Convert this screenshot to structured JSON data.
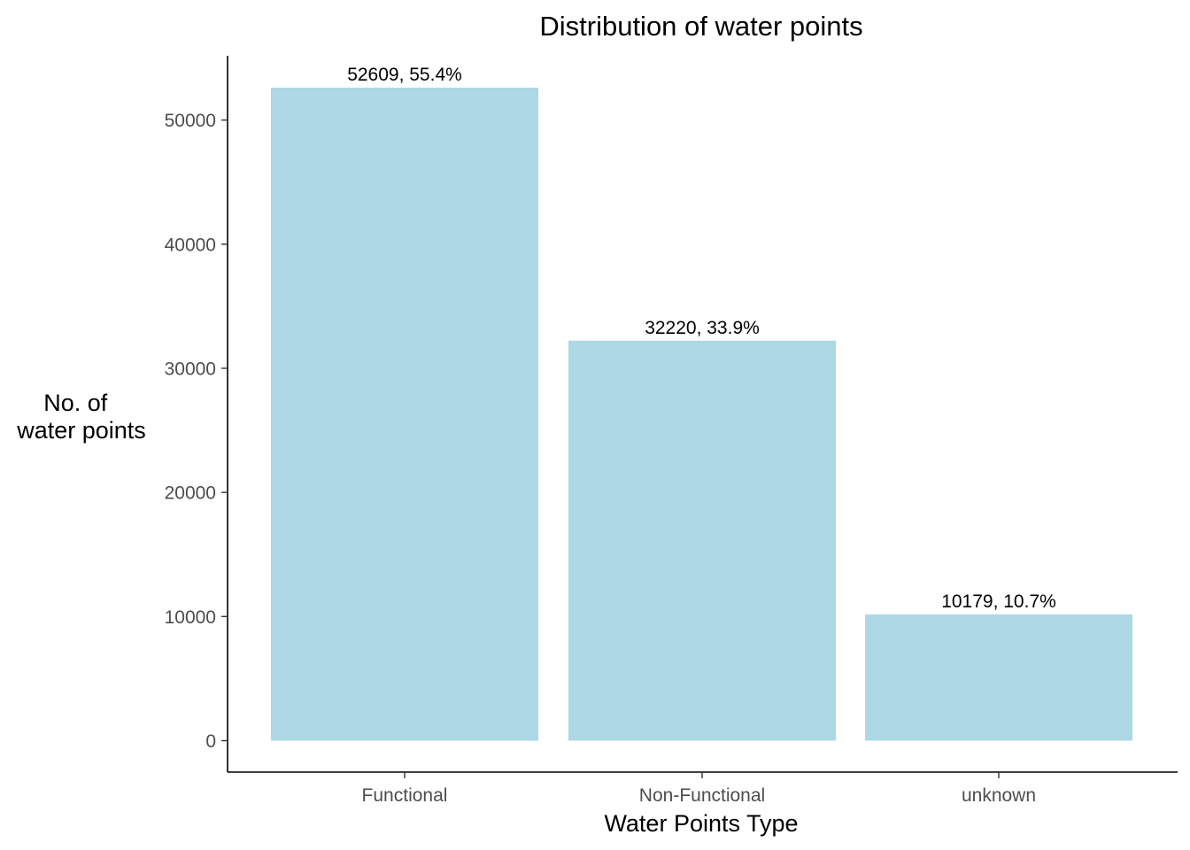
{
  "chart_data": {
    "type": "bar",
    "title": "Distribution of water points",
    "xlabel": "Water Points Type",
    "ylabel_lines": [
      "No. of",
      "water points"
    ],
    "categories": [
      "Functional",
      "Non-Functional",
      "unknown"
    ],
    "values": [
      52609,
      32220,
      10179
    ],
    "data_labels": [
      "52609, 55.4%",
      "32220, 33.9%",
      "10179, 10.7%"
    ],
    "yticks": [
      0,
      10000,
      20000,
      30000,
      40000,
      50000
    ],
    "ytick_labels": [
      "0",
      "10000",
      "20000",
      "30000",
      "40000",
      "50000"
    ],
    "ylim": [
      0,
      52609
    ],
    "bar_color": "#add8e6",
    "grid": false,
    "legend": "none"
  }
}
